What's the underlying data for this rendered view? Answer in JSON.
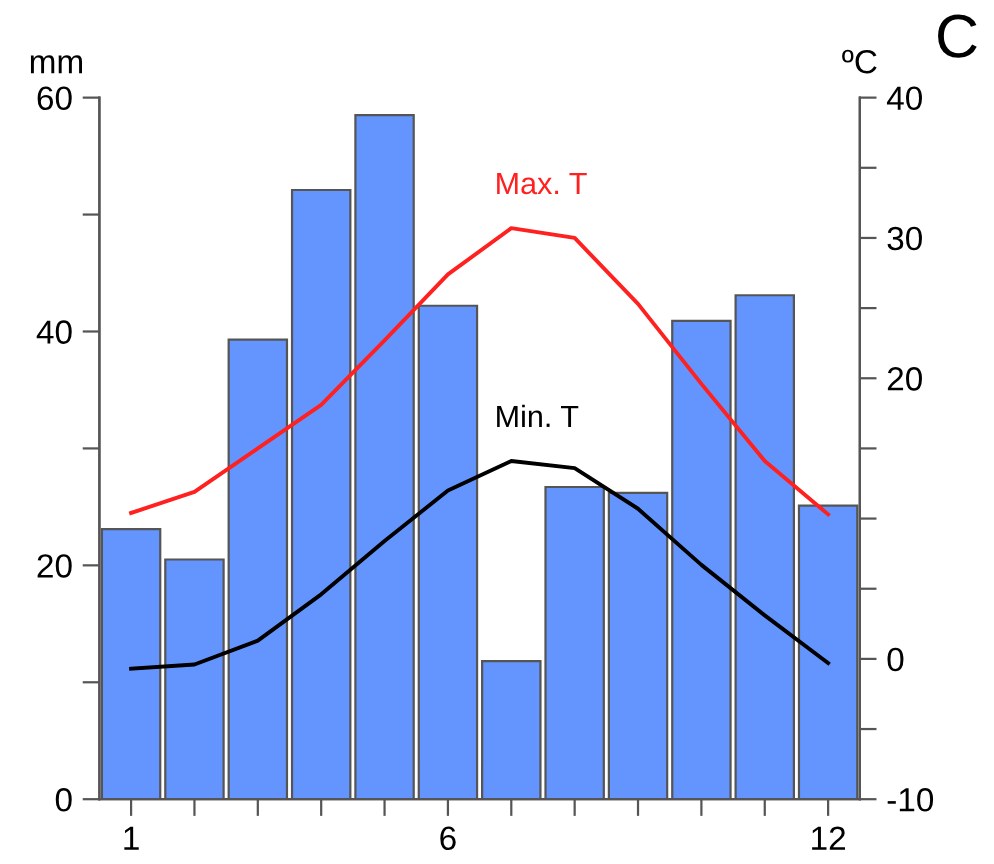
{
  "chart_data": {
    "type": "bar",
    "ylabel": "mm",
    "y2label": "ºC",
    "annotations": [
      "C"
    ],
    "x": [
      1,
      2,
      3,
      4,
      5,
      6,
      7,
      8,
      9,
      10,
      11,
      12
    ],
    "xlim": [
      0.5,
      12.5
    ],
    "xticks": [
      1,
      {
        "value": 2,
        "label": null
      },
      {
        "value": 3,
        "label": null
      },
      {
        "value": 4,
        "label": null
      },
      {
        "value": 5,
        "label": null
      },
      6,
      {
        "value": 7,
        "label": null
      },
      {
        "value": 8,
        "label": null
      },
      {
        "value": 9,
        "label": null
      },
      {
        "value": 10,
        "label": null
      },
      {
        "value": 11,
        "label": null
      },
      12
    ],
    "ylim": [
      0,
      60
    ],
    "yticks": [
      0,
      {
        "value": 10,
        "label": null
      },
      20,
      {
        "value": 30,
        "label": null
      },
      40,
      {
        "value": 50,
        "label": null
      },
      60
    ],
    "y2lim": [
      -10,
      40
    ],
    "y2ticks": [
      -10,
      {
        "value": -5,
        "label": null
      },
      0,
      {
        "value": 5,
        "label": null
      },
      {
        "value": 10,
        "label": null
      },
      {
        "value": 15,
        "label": null
      },
      20,
      {
        "value": 25,
        "label": null
      },
      30,
      {
        "value": 35,
        "label": null
      },
      40
    ],
    "grid": false,
    "legend": false,
    "series": [
      {
        "color": "#6495ff",
        "values": [
          23.1,
          20.5,
          39.3,
          52.1,
          58.5,
          42.2,
          11.8,
          26.7,
          26.2,
          40.9,
          43.1,
          25.1
        ]
      },
      {
        "type": "line",
        "name": "Max. T",
        "color": "#ff2020",
        "axis": "y2",
        "values": [
          10.4,
          11.9,
          15.0,
          18.1,
          22.7,
          27.4,
          30.7,
          30.0,
          25.3,
          19.6,
          14.1,
          10.3
        ]
      },
      {
        "type": "line",
        "name": "Min. T",
        "color": "#000000",
        "axis": "y2",
        "values": [
          -0.7,
          -0.4,
          1.3,
          4.6,
          8.4,
          12.0,
          14.1,
          13.6,
          10.7,
          6.7,
          3.1,
          -0.3
        ]
      }
    ]
  }
}
